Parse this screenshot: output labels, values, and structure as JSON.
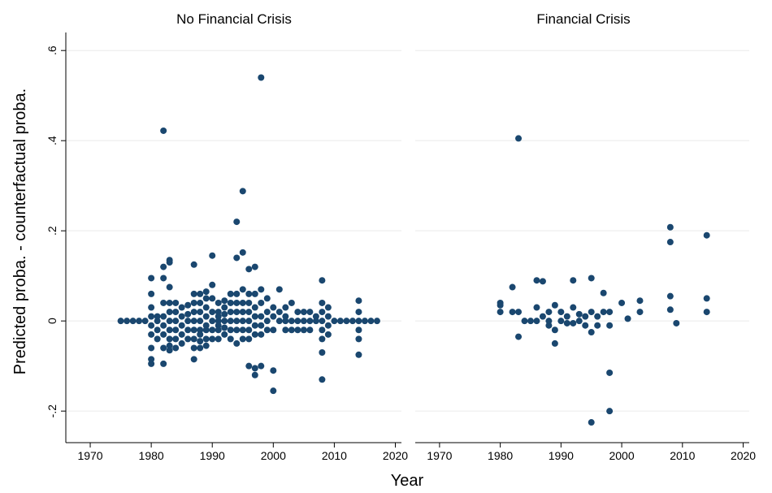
{
  "chart_data": {
    "type": "scatter",
    "xlabel": "Year",
    "ylabel": "Predicted proba. - counterfactual proba.",
    "xlim": [
      1966,
      2021
    ],
    "ylim": [
      -0.27,
      0.64
    ],
    "xticks": [
      1970,
      1980,
      1990,
      2000,
      2010,
      2020
    ],
    "yticks": [
      -0.2,
      0,
      0.2,
      0.4,
      0.6
    ],
    "ytick_labels": [
      "-.2",
      "0",
      ".2",
      ".4",
      ".6"
    ],
    "grid": true,
    "legend": "none",
    "marker_color": "#1a476f",
    "panels": [
      {
        "title": "No Financial Crisis",
        "x": [
          1975,
          1976,
          1977,
          1978,
          1979,
          1980,
          1980,
          1980,
          1980,
          1980,
          1980,
          1980,
          1980,
          1980,
          1981,
          1981,
          1981,
          1981,
          1982,
          1982,
          1982,
          1982,
          1982,
          1982,
          1982,
          1982,
          1982,
          1983,
          1983,
          1983,
          1983,
          1983,
          1983,
          1983,
          1983,
          1983,
          1983,
          1984,
          1984,
          1984,
          1984,
          1984,
          1984,
          1985,
          1985,
          1985,
          1985,
          1985,
          1986,
          1986,
          1986,
          1986,
          1986,
          1987,
          1987,
          1987,
          1987,
          1987,
          1987,
          1987,
          1987,
          1987,
          1988,
          1988,
          1988,
          1988,
          1988,
          1988,
          1988,
          1988,
          1989,
          1989,
          1989,
          1989,
          1989,
          1989,
          1989,
          1989,
          1990,
          1990,
          1990,
          1990,
          1990,
          1990,
          1990,
          1991,
          1991,
          1991,
          1991,
          1991,
          1991,
          1991,
          1992,
          1992,
          1992,
          1992,
          1992,
          1992,
          1993,
          1993,
          1993,
          1993,
          1993,
          1993,
          1994,
          1994,
          1994,
          1994,
          1994,
          1994,
          1994,
          1994,
          1995,
          1995,
          1995,
          1995,
          1995,
          1995,
          1995,
          1995,
          1996,
          1996,
          1996,
          1996,
          1996,
          1996,
          1996,
          1996,
          1997,
          1997,
          1997,
          1997,
          1997,
          1997,
          1997,
          1997,
          1998,
          1998,
          1998,
          1998,
          1998,
          1998,
          1998,
          1999,
          1999,
          1999,
          1999,
          2000,
          2000,
          2000,
          2000,
          2000,
          2001,
          2001,
          2001,
          2002,
          2002,
          2002,
          2002,
          2003,
          2003,
          2003,
          2004,
          2004,
          2004,
          2005,
          2005,
          2005,
          2006,
          2006,
          2006,
          2007,
          2007,
          2008,
          2008,
          2008,
          2008,
          2008,
          2008,
          2008,
          2008,
          2009,
          2009,
          2009,
          2009,
          2010,
          2011,
          2012,
          2013,
          2014,
          2014,
          2014,
          2014,
          2014,
          2014,
          2015,
          2016,
          2017
        ],
        "y": [
          0,
          0,
          0,
          0,
          0,
          0.095,
          0.06,
          0.03,
          0.01,
          -0.01,
          -0.03,
          -0.06,
          -0.085,
          -0.095,
          0.01,
          0,
          -0.02,
          -0.04,
          0.422,
          0.12,
          0.095,
          0.04,
          0.01,
          -0.01,
          -0.03,
          -0.06,
          -0.095,
          0.135,
          0.13,
          0.075,
          0.04,
          0.02,
          0,
          -0.02,
          -0.04,
          -0.055,
          -0.065,
          0.04,
          0.02,
          0,
          -0.02,
          -0.04,
          -0.06,
          0.03,
          0.01,
          -0.01,
          -0.03,
          -0.05,
          0.035,
          0.015,
          0,
          -0.02,
          -0.04,
          0.125,
          0.06,
          0.04,
          0.02,
          0,
          -0.02,
          -0.04,
          -0.06,
          -0.085,
          0.06,
          0.04,
          0.02,
          0,
          -0.02,
          -0.03,
          -0.045,
          -0.06,
          0.065,
          0.05,
          0.03,
          0.01,
          -0.01,
          -0.02,
          -0.04,
          -0.055,
          0.145,
          0.08,
          0.05,
          0.02,
          0,
          -0.02,
          -0.04,
          0.04,
          0.02,
          0.01,
          0,
          -0.01,
          -0.02,
          -0.04,
          0.045,
          0.03,
          0.015,
          0,
          -0.015,
          -0.03,
          0.06,
          0.04,
          0.02,
          0,
          -0.02,
          -0.04,
          0.22,
          0.14,
          0.06,
          0.04,
          0.02,
          0,
          -0.02,
          -0.05,
          0.288,
          0.152,
          0.07,
          0.04,
          0.02,
          0,
          -0.02,
          -0.04,
          0.115,
          0.06,
          0.04,
          0.02,
          0,
          -0.02,
          -0.04,
          -0.1,
          0.12,
          0.06,
          0.03,
          0.01,
          -0.01,
          -0.03,
          -0.105,
          -0.12,
          0.54,
          0.07,
          0.04,
          0.01,
          -0.01,
          -0.03,
          -0.1,
          0.05,
          0.02,
          0,
          -0.02,
          -0.11,
          -0.155,
          0.03,
          0.01,
          -0.02,
          0.07,
          0.02,
          0,
          0.03,
          0.01,
          0,
          -0.02,
          0.04,
          0,
          -0.02,
          0.02,
          0,
          -0.02,
          0.02,
          0,
          -0.02,
          0.02,
          0,
          -0.02,
          0.01,
          0,
          0.09,
          0.04,
          0.02,
          0,
          -0.02,
          -0.04,
          -0.07,
          -0.13,
          0.03,
          0.01,
          -0.01,
          -0.03,
          0,
          0,
          0,
          0,
          0.045,
          0.02,
          0,
          -0.02,
          -0.04,
          -0.075,
          0,
          0,
          0
        ]
      },
      {
        "title": "Financial Crisis",
        "x": [
          1980,
          1980,
          1980,
          1982,
          1982,
          1983,
          1983,
          1983,
          1984,
          1985,
          1986,
          1986,
          1986,
          1987,
          1987,
          1988,
          1988,
          1988,
          1989,
          1989,
          1989,
          1990,
          1990,
          1991,
          1991,
          1992,
          1992,
          1992,
          1993,
          1993,
          1994,
          1994,
          1995,
          1995,
          1995,
          1995,
          1996,
          1996,
          1997,
          1997,
          1998,
          1998,
          1998,
          1998,
          2000,
          2001,
          2003,
          2003,
          2008,
          2008,
          2008,
          2008,
          2009,
          2014,
          2014,
          2014
        ],
        "y": [
          0.04,
          0.035,
          0.02,
          0.075,
          0.02,
          0.405,
          0.02,
          -0.035,
          0,
          0,
          0.09,
          0.03,
          0,
          0.088,
          0.01,
          0.02,
          0,
          -0.01,
          0.035,
          -0.02,
          -0.05,
          0.02,
          0,
          0.01,
          -0.005,
          0.09,
          0.03,
          -0.005,
          0.015,
          0,
          0.01,
          -0.01,
          0.095,
          0.02,
          -0.025,
          -0.225,
          0.01,
          -0.01,
          0.062,
          0.02,
          0.02,
          -0.01,
          -0.115,
          -0.2,
          0.04,
          0.005,
          0.045,
          0.02,
          0.208,
          0.175,
          0.055,
          0.025,
          -0.005,
          0.19,
          0.05,
          0.02
        ]
      }
    ]
  }
}
